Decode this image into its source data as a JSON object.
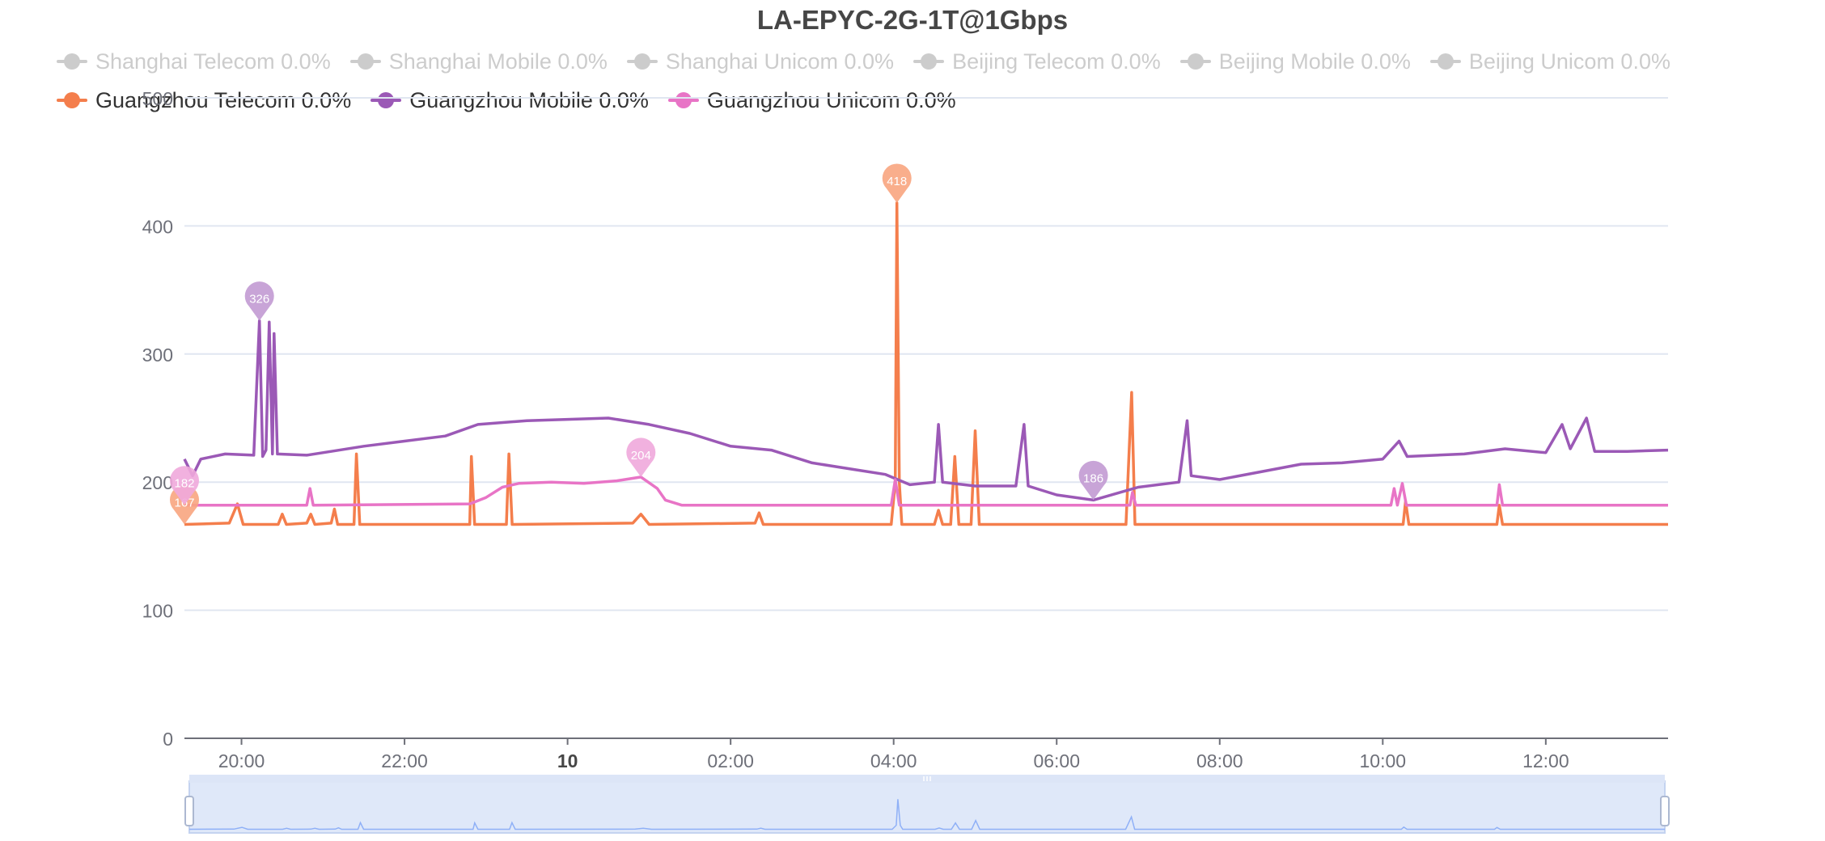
{
  "chart_data": {
    "type": "line",
    "title": "LA-EPYC-2G-1T@1Gbps",
    "xlabel": "",
    "ylabel": "",
    "ylim": [
      0,
      500
    ],
    "y_ticks": [
      "0",
      "100",
      "200",
      "300",
      "400",
      "500"
    ],
    "x_range_hours": [
      -4.7,
      13.5
    ],
    "x_ticks": [
      {
        "label": "20:00",
        "t": -4.0,
        "bold": false
      },
      {
        "label": "22:00",
        "t": -2.0,
        "bold": false
      },
      {
        "label": "10",
        "t": 0.0,
        "bold": true
      },
      {
        "label": "02:00",
        "t": 2.0,
        "bold": false
      },
      {
        "label": "04:00",
        "t": 4.0,
        "bold": false
      },
      {
        "label": "06:00",
        "t": 6.0,
        "bold": false
      },
      {
        "label": "08:00",
        "t": 8.0,
        "bold": false
      },
      {
        "label": "10:00",
        "t": 10.0,
        "bold": false
      },
      {
        "label": "12:00",
        "t": 12.0,
        "bold": false
      }
    ],
    "grid": true,
    "legend_position": "top-left",
    "series": [
      {
        "name": "Shanghai Telecom 0.0%",
        "visible": false,
        "color": "#cccccc",
        "points": []
      },
      {
        "name": "Shanghai Mobile 0.0%",
        "visible": false,
        "color": "#cccccc",
        "points": []
      },
      {
        "name": "Shanghai Unicom 0.0%",
        "visible": false,
        "color": "#cccccc",
        "points": []
      },
      {
        "name": "Beijing Telecom 0.0%",
        "visible": false,
        "color": "#cccccc",
        "points": []
      },
      {
        "name": "Beijing Mobile 0.0%",
        "visible": false,
        "color": "#cccccc",
        "points": []
      },
      {
        "name": "Beijing Unicom 0.0%",
        "visible": false,
        "color": "#cccccc",
        "points": []
      },
      {
        "name": "Guangzhou Telecom 0.0%",
        "visible": true,
        "color": "#f47e4c",
        "points": [
          [
            -4.7,
            167
          ],
          [
            -4.15,
            168
          ],
          [
            -4.05,
            183
          ],
          [
            -3.98,
            167
          ],
          [
            -3.55,
            167
          ],
          [
            -3.5,
            175
          ],
          [
            -3.45,
            167
          ],
          [
            -3.2,
            168
          ],
          [
            -3.15,
            175
          ],
          [
            -3.1,
            167
          ],
          [
            -2.9,
            168
          ],
          [
            -2.86,
            179
          ],
          [
            -2.82,
            167
          ],
          [
            -2.62,
            167
          ],
          [
            -2.59,
            222
          ],
          [
            -2.55,
            167
          ],
          [
            -1.2,
            167
          ],
          [
            -1.18,
            220
          ],
          [
            -1.14,
            167
          ],
          [
            -0.75,
            167
          ],
          [
            -0.72,
            222
          ],
          [
            -0.68,
            167
          ],
          [
            0.8,
            168
          ],
          [
            0.9,
            175
          ],
          [
            1.0,
            167
          ],
          [
            2.3,
            168
          ],
          [
            2.35,
            176
          ],
          [
            2.4,
            167
          ],
          [
            3.97,
            167
          ],
          [
            4.02,
            200
          ],
          [
            4.04,
            418
          ],
          [
            4.07,
            200
          ],
          [
            4.1,
            167
          ],
          [
            4.5,
            167
          ],
          [
            4.55,
            178
          ],
          [
            4.6,
            167
          ],
          [
            4.7,
            167
          ],
          [
            4.75,
            220
          ],
          [
            4.8,
            167
          ],
          [
            4.95,
            167
          ],
          [
            5.0,
            240
          ],
          [
            5.05,
            167
          ],
          [
            6.85,
            167
          ],
          [
            6.92,
            270
          ],
          [
            6.96,
            167
          ],
          [
            10.25,
            167
          ],
          [
            10.28,
            185
          ],
          [
            10.32,
            167
          ],
          [
            11.4,
            167
          ],
          [
            11.43,
            182
          ],
          [
            11.47,
            167
          ],
          [
            13.5,
            167
          ]
        ]
      },
      {
        "name": "Guangzhou Mobile 0.0%",
        "visible": true,
        "color": "#9b59b6",
        "points": [
          [
            -4.7,
            218
          ],
          [
            -4.6,
            205
          ],
          [
            -4.5,
            218
          ],
          [
            -4.2,
            222
          ],
          [
            -3.85,
            221
          ],
          [
            -3.78,
            326
          ],
          [
            -3.74,
            220
          ],
          [
            -3.7,
            225
          ],
          [
            -3.66,
            325
          ],
          [
            -3.62,
            222
          ],
          [
            -3.6,
            316
          ],
          [
            -3.56,
            222
          ],
          [
            -3.2,
            221
          ],
          [
            -2.9,
            224
          ],
          [
            -2.5,
            228
          ],
          [
            -2.0,
            232
          ],
          [
            -1.5,
            236
          ],
          [
            -1.1,
            245
          ],
          [
            -0.5,
            248
          ],
          [
            0.0,
            249
          ],
          [
            0.5,
            250
          ],
          [
            1.0,
            245
          ],
          [
            1.5,
            238
          ],
          [
            2.0,
            228
          ],
          [
            2.5,
            225
          ],
          [
            3.0,
            215
          ],
          [
            3.5,
            210
          ],
          [
            3.9,
            206
          ],
          [
            4.2,
            198
          ],
          [
            4.5,
            200
          ],
          [
            4.55,
            245
          ],
          [
            4.6,
            200
          ],
          [
            5.0,
            197
          ],
          [
            5.5,
            197
          ],
          [
            5.6,
            245
          ],
          [
            5.65,
            197
          ],
          [
            6.0,
            190
          ],
          [
            6.45,
            186
          ],
          [
            7.0,
            196
          ],
          [
            7.5,
            200
          ],
          [
            7.6,
            248
          ],
          [
            7.65,
            205
          ],
          [
            8.0,
            202
          ],
          [
            8.5,
            208
          ],
          [
            9.0,
            214
          ],
          [
            9.5,
            215
          ],
          [
            10.0,
            218
          ],
          [
            10.2,
            232
          ],
          [
            10.3,
            220
          ],
          [
            11.0,
            222
          ],
          [
            11.5,
            226
          ],
          [
            12.0,
            223
          ],
          [
            12.2,
            245
          ],
          [
            12.3,
            226
          ],
          [
            12.5,
            250
          ],
          [
            12.6,
            224
          ],
          [
            13.0,
            224
          ],
          [
            13.5,
            225
          ]
        ]
      },
      {
        "name": "Guangzhou Unicom 0.0%",
        "visible": true,
        "color": "#e874c6",
        "points": [
          [
            -4.7,
            182
          ],
          [
            -3.2,
            182
          ],
          [
            -3.16,
            195
          ],
          [
            -3.12,
            182
          ],
          [
            -1.2,
            183
          ],
          [
            -1.0,
            188
          ],
          [
            -0.8,
            196
          ],
          [
            -0.6,
            199
          ],
          [
            -0.2,
            200
          ],
          [
            0.2,
            199
          ],
          [
            0.6,
            201
          ],
          [
            0.9,
            204
          ],
          [
            1.1,
            195
          ],
          [
            1.2,
            186
          ],
          [
            1.4,
            182
          ],
          [
            3.97,
            182
          ],
          [
            4.02,
            202
          ],
          [
            4.07,
            182
          ],
          [
            6.9,
            182
          ],
          [
            6.93,
            192
          ],
          [
            6.97,
            182
          ],
          [
            10.1,
            182
          ],
          [
            10.14,
            195
          ],
          [
            10.18,
            182
          ],
          [
            10.24,
            199
          ],
          [
            10.29,
            182
          ],
          [
            11.4,
            182
          ],
          [
            11.43,
            198
          ],
          [
            11.47,
            182
          ],
          [
            13.5,
            182
          ]
        ]
      }
    ],
    "markers": [
      {
        "series": "Guangzhou Telecom 0.0%",
        "value": "418",
        "t": 4.04,
        "y": 418,
        "color": "#f8a57f"
      },
      {
        "series": "Guangzhou Telecom 0.0%",
        "value": "167",
        "t": -4.7,
        "y": 167,
        "color": "#f8a57f"
      },
      {
        "series": "Guangzhou Mobile 0.0%",
        "value": "326",
        "t": -3.78,
        "y": 326,
        "color": "#c29ad3"
      },
      {
        "series": "Guangzhou Mobile 0.0%",
        "value": "186",
        "t": 6.45,
        "y": 186,
        "color": "#c29ad3"
      },
      {
        "series": "Guangzhou Unicom 0.0%",
        "value": "204",
        "t": 0.9,
        "y": 204,
        "color": "#f0a8dc"
      },
      {
        "series": "Guangzhou Unicom 0.0%",
        "value": "182",
        "t": -4.7,
        "y": 182,
        "color": "#f0a8dc"
      }
    ],
    "data_zoom": {
      "start_fraction": 0.0,
      "end_fraction": 1.0
    }
  }
}
